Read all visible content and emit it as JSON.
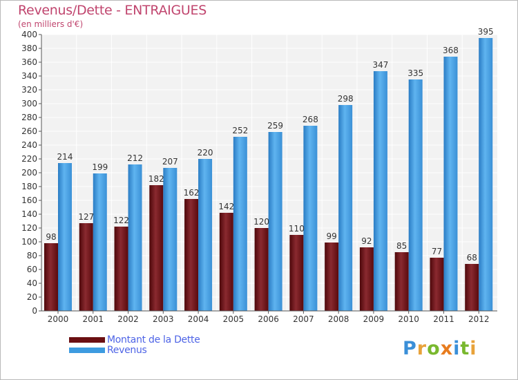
{
  "title": "Revenus/Dette - ENTRAIGUES",
  "subtitle": "(en milliers d'€)",
  "brand": {
    "letters": [
      "P",
      "r",
      "o",
      "x",
      "i",
      "t",
      "i"
    ],
    "colors": [
      "#3a8fd8",
      "#e8a23a",
      "#79b82e",
      "#e87c1e",
      "#3a8fd8",
      "#79b82e",
      "#e8a23a"
    ]
  },
  "legend": [
    {
      "label": "Montant de la Dette",
      "color": "#6b0f12"
    },
    {
      "label": "Revenus",
      "color": "#3d9be0"
    }
  ],
  "chart_data": {
    "type": "bar",
    "categories": [
      "2000",
      "2001",
      "2002",
      "2003",
      "2004",
      "2005",
      "2006",
      "2007",
      "2008",
      "2009",
      "2010",
      "2011",
      "2012"
    ],
    "series": [
      {
        "name": "Montant de la Dette",
        "values": [
          98,
          127,
          122,
          182,
          162,
          142,
          120,
          110,
          99,
          92,
          85,
          77,
          68
        ],
        "color": "#6b0f12"
      },
      {
        "name": "Revenus",
        "values": [
          214,
          199,
          212,
          207,
          220,
          252,
          259,
          268,
          298,
          347,
          335,
          368,
          395
        ],
        "color": "#3d9be0"
      }
    ],
    "ylim": [
      0,
      400
    ],
    "ytick_step": 20,
    "grid": true,
    "title": "Revenus/Dette - ENTRAIGUES",
    "ylabel": "(en milliers d'€)",
    "legend_position": "bottom-left"
  }
}
